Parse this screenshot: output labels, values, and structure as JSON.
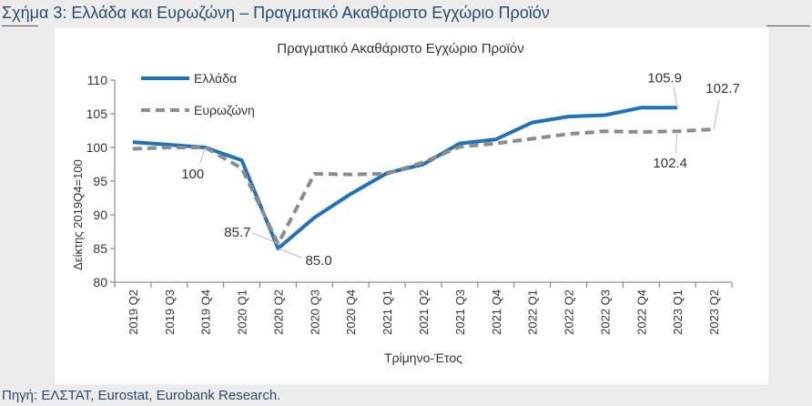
{
  "figure_title": "Σχήμα 3: Ελλάδα και Ευρωζώνη – Πραγματικό Ακαθάριστο Εγχώριο Προϊόν",
  "source_note": "Πηγή: ΕΛΣΤΑΤ, Eurostat, Eurobank Research.",
  "colors": {
    "greece": "#1f72b8",
    "eurozone": "#8c8c8c",
    "text": "#333333"
  },
  "chart_data": {
    "type": "line",
    "title": "Πραγματικό Ακαθάριστο Εγχώριο Προϊόν",
    "xlabel": "Τρίμηνο-Έτος",
    "ylabel": "Δείκτης 2019Q4=100",
    "ylim": [
      80,
      110
    ],
    "yticks": [
      80,
      85,
      90,
      95,
      100,
      105,
      110
    ],
    "grid": false,
    "legend_position": "top-left",
    "categories": [
      "2019 Q2",
      "2019 Q3",
      "2019 Q4",
      "2020 Q1",
      "2020 Q2",
      "2020 Q3",
      "2020 Q4",
      "2021 Q1",
      "2021 Q2",
      "2021 Q3",
      "2021 Q4",
      "2022 Q1",
      "2022 Q2",
      "2022 Q3",
      "2022 Q4",
      "2023 Q1",
      "2023 Q2"
    ],
    "series": [
      {
        "name": "Ελλάδα",
        "style": "solid",
        "values": [
          100.8,
          100.4,
          100.0,
          98.1,
          85.0,
          89.6,
          93.1,
          96.2,
          97.5,
          100.6,
          101.2,
          103.7,
          104.6,
          104.8,
          105.9,
          105.9,
          null
        ]
      },
      {
        "name": "Ευρωζώνη",
        "style": "dashed",
        "values": [
          99.8,
          100.0,
          100.0,
          96.9,
          85.7,
          96.1,
          96.0,
          96.1,
          97.8,
          100.1,
          100.6,
          101.3,
          102.0,
          102.4,
          102.3,
          102.4,
          102.7
        ]
      }
    ],
    "annotations": [
      {
        "text": "100",
        "series": 0,
        "index": 2
      },
      {
        "text": "85.7",
        "series": 1,
        "index": 4
      },
      {
        "text": "85.0",
        "series": 0,
        "index": 4
      },
      {
        "text": "105.9",
        "series": 0,
        "index": 15
      },
      {
        "text": "102.4",
        "series": 1,
        "index": 15
      },
      {
        "text": "102.7",
        "series": 1,
        "index": 16
      }
    ]
  }
}
